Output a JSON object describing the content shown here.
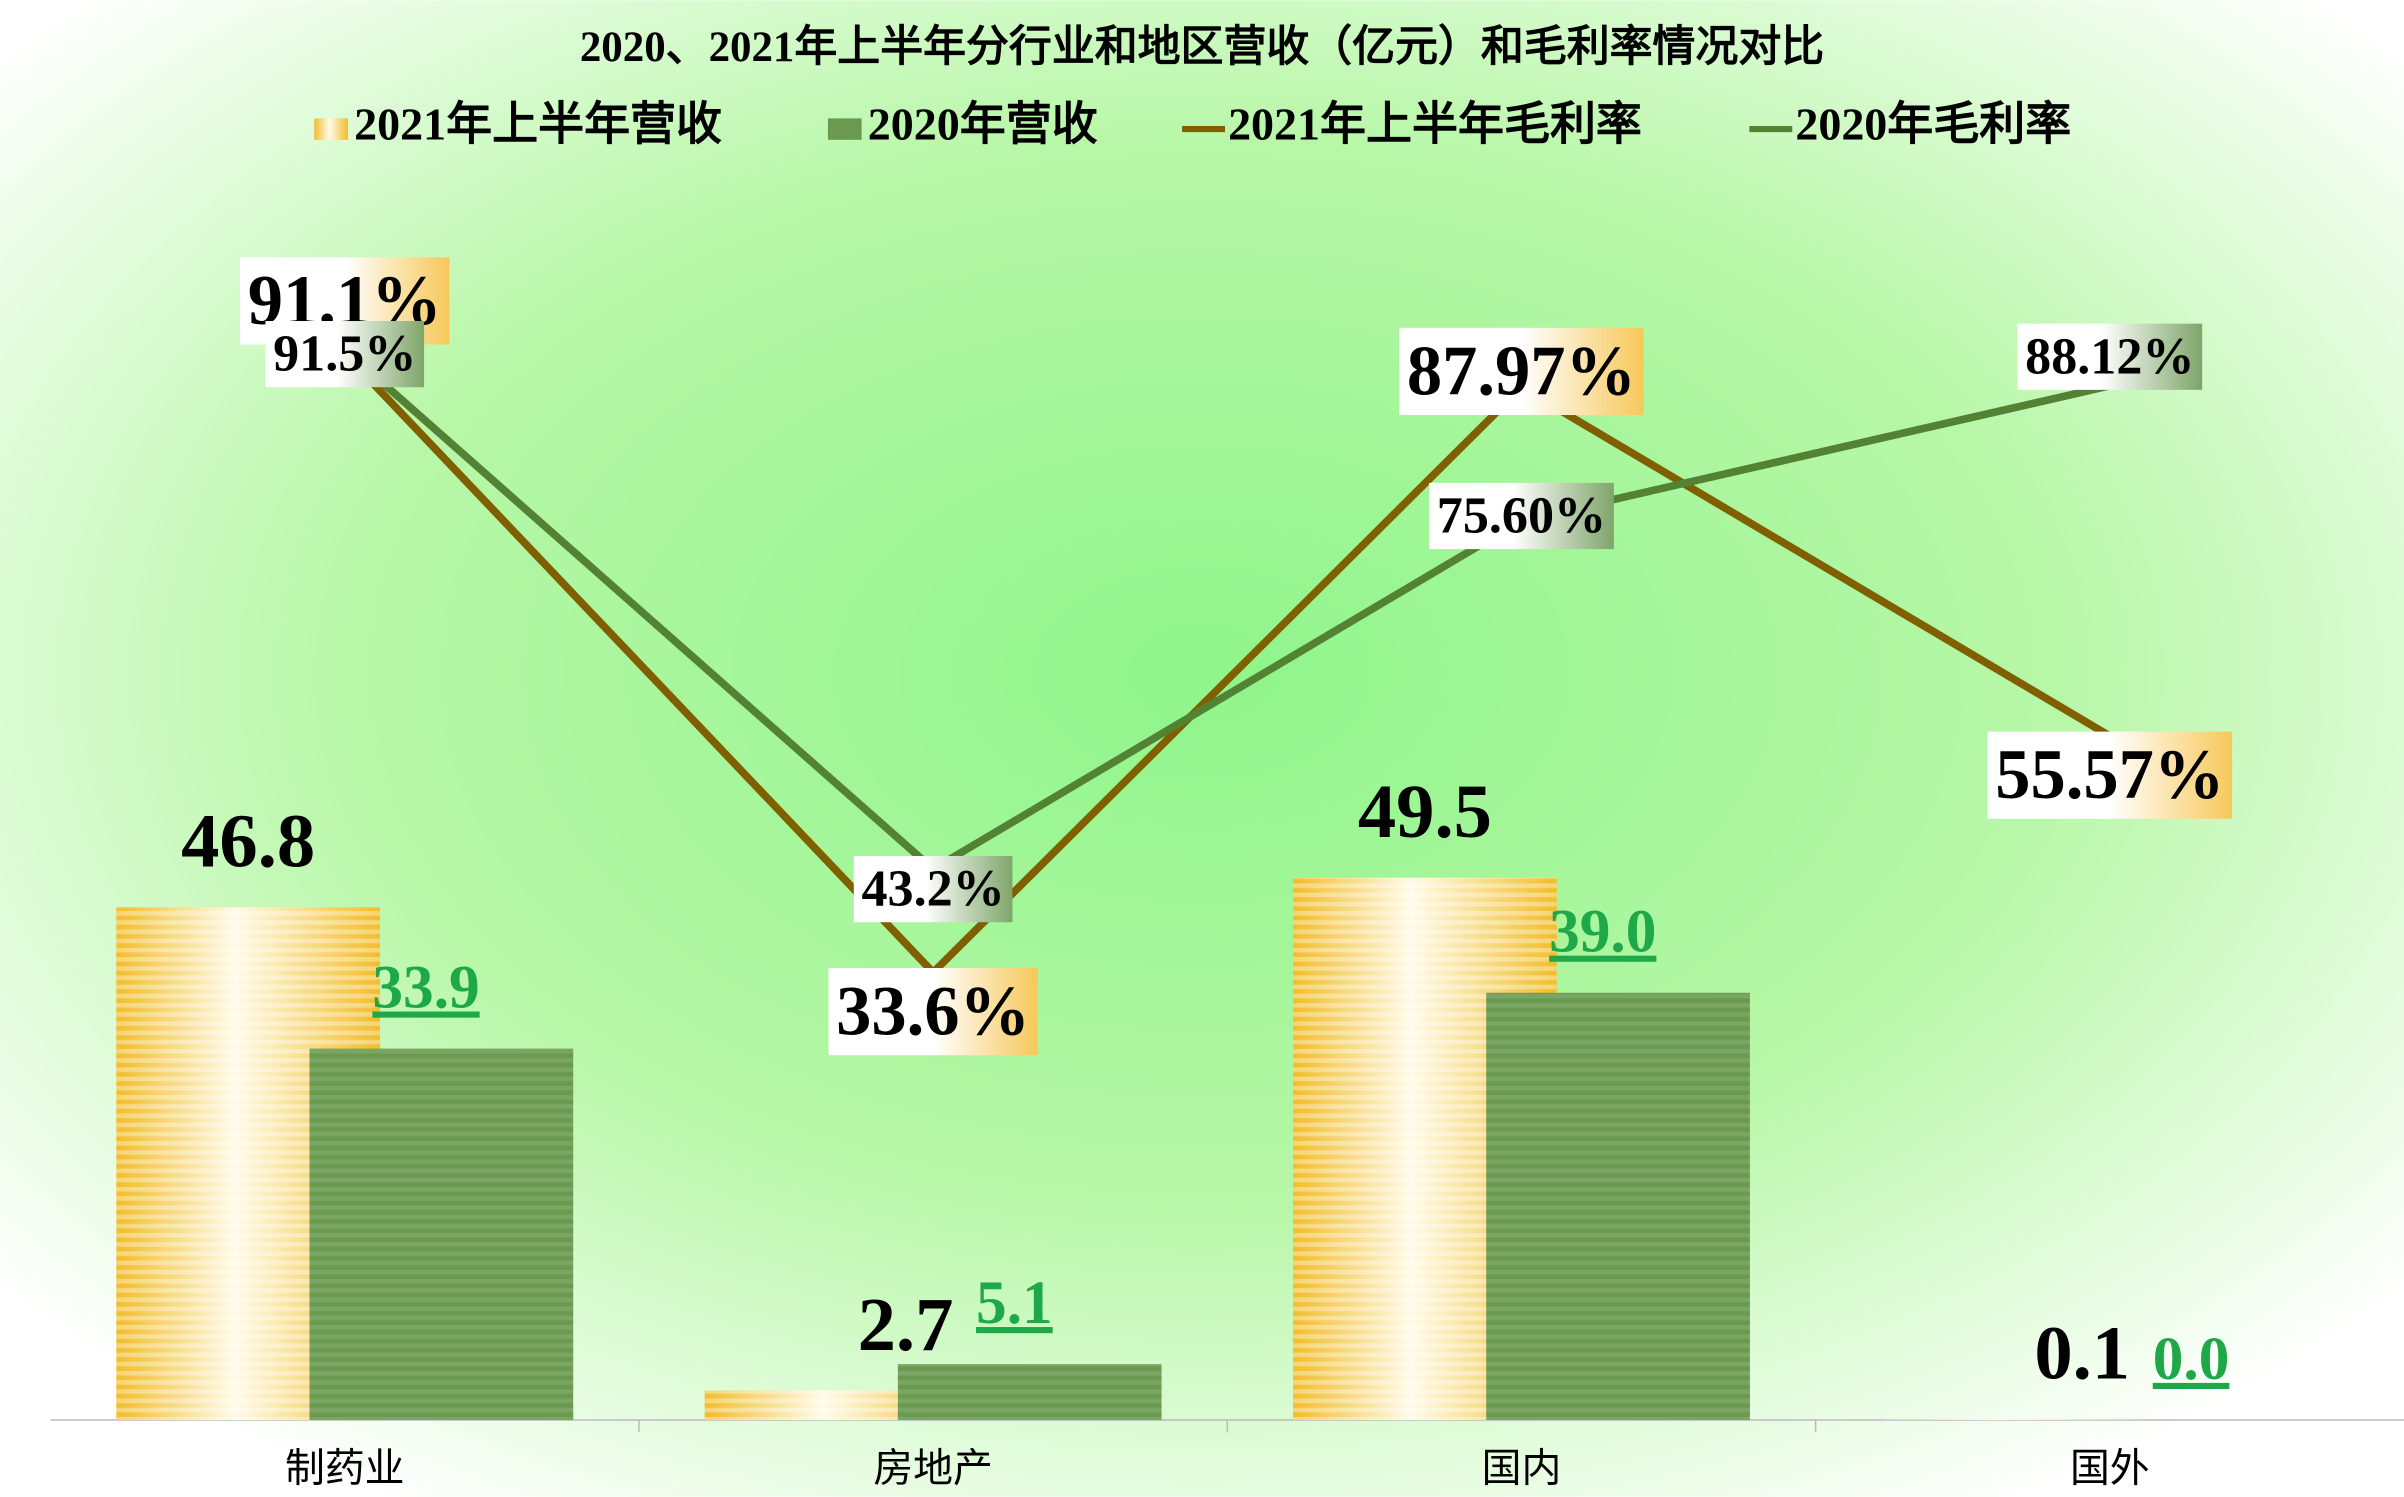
{
  "chart_data": {
    "type": "bar",
    "title": "2020、2021年上半年分行业和地区营收（亿元）和毛利率情况对比",
    "categories": [
      "制药业",
      "房地产",
      "国内",
      "国外"
    ],
    "ylim": [
      0,
      110
    ],
    "y2lim": [
      -8,
      104
    ],
    "series": [
      {
        "name": "2021年上半年营收",
        "type": "bar",
        "color": "#f2bd2a",
        "values": [
          46.8,
          2.7,
          49.5,
          0.1
        ],
        "value_labels": [
          "46.8",
          "2.7",
          "49.5",
          "0.1"
        ]
      },
      {
        "name": "2020年营收",
        "type": "bar",
        "color": "#6a9a50",
        "values": [
          33.9,
          5.1,
          39.0,
          0.0
        ],
        "value_labels": [
          "33.9",
          "5.1",
          "39.0",
          "0.0"
        ]
      },
      {
        "name": "2021年上半年毛利率",
        "type": "line",
        "axis": "y2",
        "color": "#7f5f00",
        "values": [
          91.1,
          33.6,
          87.97,
          55.57
        ],
        "value_labels": [
          "91.1%",
          "33.6%",
          "87.97%",
          "55.57%"
        ]
      },
      {
        "name": "2020年毛利率",
        "type": "line",
        "axis": "y2",
        "color": "#548235",
        "values": [
          91.5,
          43.2,
          75.6,
          88.12
        ],
        "value_labels": [
          "91.5%",
          "43.2%",
          "75.60%",
          "88.12%"
        ]
      }
    ]
  }
}
